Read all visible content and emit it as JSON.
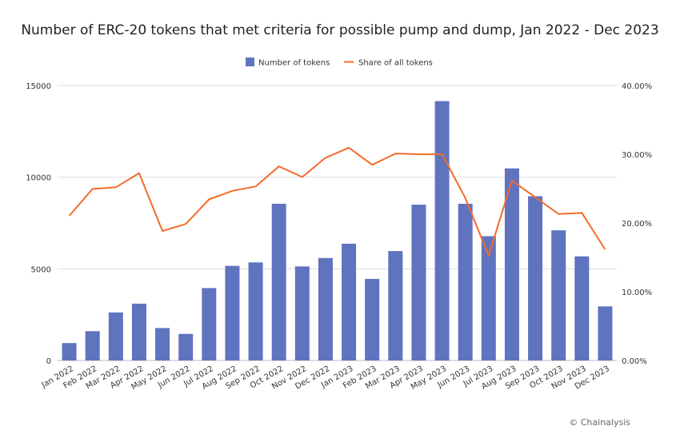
{
  "title": "Number of ERC-20 tokens that met criteria for possible pump and dump, Jan 2022 - Dec 2023",
  "credit": "© Chainalysis",
  "chart_data": {
    "type": "bar",
    "title": "Number of ERC-20 tokens that met criteria for possible pump and dump, Jan 2022 - Dec 2023",
    "categories": [
      "Jan 2022",
      "Feb 2022",
      "Mar 2022",
      "Apr 2022",
      "May 2022",
      "Jun 2022",
      "Jul 2022",
      "Aug 2022",
      "Sep 2022",
      "Oct 2022",
      "Nov 2022",
      "Dec 2022",
      "Jan 2023",
      "Feb 2023",
      "Mar 2023",
      "Apr 2023",
      "May 2023",
      "Jun 2023",
      "Jul 2023",
      "Aug 2023",
      "Sep 2023",
      "Oct 2023",
      "Nov 2023",
      "Dec 2023"
    ],
    "series": [
      {
        "name": "Number of tokens",
        "type": "bar",
        "axis": "left",
        "color": "#5f73bf",
        "values": [
          950,
          1600,
          2620,
          3100,
          1770,
          1450,
          3950,
          5160,
          5350,
          8550,
          5130,
          5590,
          6370,
          4450,
          5970,
          8500,
          14150,
          8550,
          6780,
          10480,
          8960,
          7100,
          5680,
          2950
        ]
      },
      {
        "name": "Share of all tokens",
        "type": "line",
        "axis": "right",
        "color": "#f26b2b",
        "values": [
          0.2105,
          0.2495,
          0.252,
          0.2726,
          0.1882,
          0.1986,
          0.2343,
          0.2468,
          0.2532,
          0.2825,
          0.2669,
          0.2949,
          0.3095,
          0.2846,
          0.3011,
          0.3,
          0.3,
          0.2363,
          0.1525,
          0.2616,
          0.2374,
          0.213,
          0.2148,
          0.1616
        ]
      }
    ],
    "y_left": {
      "lim": [
        0,
        15000
      ],
      "ticks": [
        "0",
        "5000",
        "10000",
        "15000"
      ],
      "tick_values": [
        0,
        5000,
        10000,
        15000
      ]
    },
    "y_right": {
      "lim": [
        0,
        0.4
      ],
      "ticks": [
        "0.00%",
        "10.00%",
        "20.00%",
        "30.00%",
        "40.00%"
      ],
      "tick_values": [
        0,
        0.1,
        0.2,
        0.3,
        0.4
      ]
    },
    "grid": true,
    "legend_position": "top"
  }
}
